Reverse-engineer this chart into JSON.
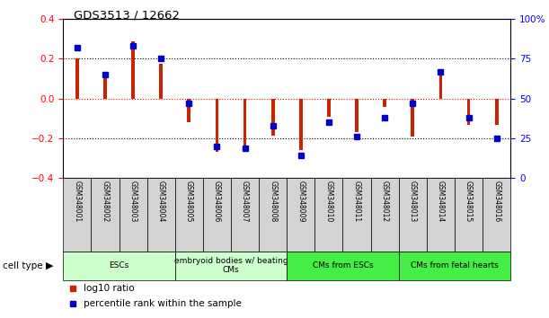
{
  "title": "GDS3513 / 12662",
  "samples": [
    "GSM348001",
    "GSM348002",
    "GSM348003",
    "GSM348004",
    "GSM348005",
    "GSM348006",
    "GSM348007",
    "GSM348008",
    "GSM348009",
    "GSM348010",
    "GSM348011",
    "GSM348012",
    "GSM348013",
    "GSM348014",
    "GSM348015",
    "GSM348016"
  ],
  "log10_ratio": [
    0.2,
    0.11,
    0.29,
    0.175,
    -0.12,
    -0.27,
    -0.27,
    -0.185,
    -0.26,
    -0.09,
    -0.17,
    -0.04,
    -0.19,
    0.12,
    -0.13,
    -0.13
  ],
  "percentile_rank": [
    82,
    65,
    83,
    75,
    47,
    20,
    19,
    33,
    14,
    35,
    26,
    38,
    47,
    67,
    38,
    25
  ],
  "cell_types": [
    {
      "label": "ESCs",
      "start": 0,
      "end": 4,
      "color": "#CCFFCC"
    },
    {
      "label": "embryoid bodies w/ beating\nCMs",
      "start": 4,
      "end": 8,
      "color": "#CCFFCC"
    },
    {
      "label": "CMs from ESCs",
      "start": 8,
      "end": 12,
      "color": "#44EE44"
    },
    {
      "label": "CMs from fetal hearts",
      "start": 12,
      "end": 16,
      "color": "#44EE44"
    }
  ],
  "bar_color_red": "#CC2200",
  "bar_color_blue": "#0000CC",
  "ylim_left": [
    -0.4,
    0.4
  ],
  "ylim_right": [
    0,
    100
  ],
  "yticks_left": [
    -0.4,
    -0.2,
    0.0,
    0.2,
    0.4
  ],
  "yticks_right": [
    0,
    25,
    50,
    75,
    100
  ],
  "hlines_black": [
    0.2,
    -0.2
  ],
  "hline_red": 0.0,
  "legend_items": [
    {
      "label": "log10 ratio",
      "color": "#CC2200"
    },
    {
      "label": "percentile rank within the sample",
      "color": "#0000CC"
    }
  ],
  "sample_box_color": "#D3D3D3",
  "bar_width": 0.12
}
